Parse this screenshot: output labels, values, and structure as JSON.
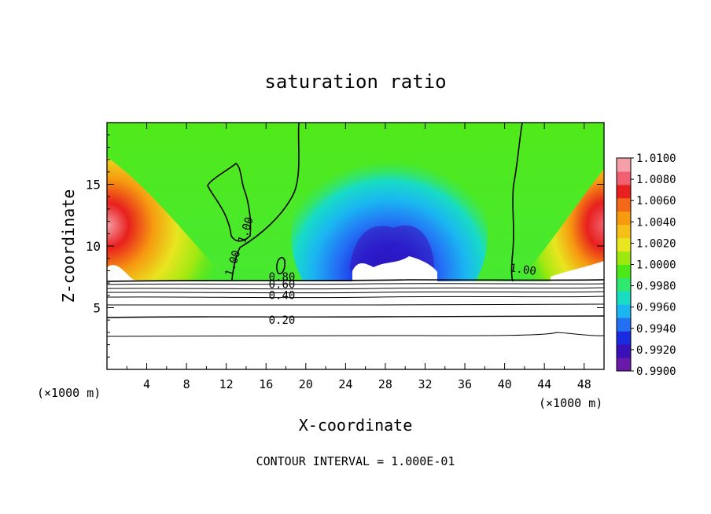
{
  "chart_data": {
    "type": "contour",
    "title": "saturation ratio",
    "xlabel": "X-coordinate",
    "ylabel": "Z-coordinate",
    "x_unit_left": "(×1000 m)",
    "x_unit_right": "(×1000 m)",
    "xlim": [
      0,
      50
    ],
    "ylim": [
      0,
      20
    ],
    "xticks": [
      "4",
      "8",
      "12",
      "16",
      "20",
      "24",
      "28",
      "32",
      "36",
      "40",
      "44",
      "48"
    ],
    "yticks": [
      "5",
      "10",
      "15"
    ],
    "footer": "CONTOUR INTERVAL = 1.000E-01",
    "colorbar": {
      "min": 0.99,
      "max": 1.01,
      "labels": [
        "1.0100",
        "1.0080",
        "1.0060",
        "1.0040",
        "1.0020",
        "1.0000",
        "0.9980",
        "0.9960",
        "0.9940",
        "0.9920",
        "0.9900"
      ],
      "colors": [
        "#6a1aa8",
        "#3a10b8",
        "#1a2ae0",
        "#2470f5",
        "#1ab6f2",
        "#18dcc4",
        "#2ee870",
        "#4ce818",
        "#9ee810",
        "#e8e620",
        "#f6c018",
        "#f69a10",
        "#f46818",
        "#e8201e",
        "#f06070",
        "#f4a0a8"
      ]
    },
    "contour_labels": [
      {
        "text": "1.00",
        "x": 14.3,
        "z": 11.2,
        "angle": -72
      },
      {
        "text": "1.00",
        "x": 13.0,
        "z": 8.5,
        "angle": -72
      },
      {
        "text": "1.00",
        "x": 41.8,
        "z": 7.8,
        "angle": 8
      },
      {
        "text": "0.80",
        "x": 17.6,
        "z": 7.2,
        "angle": 0
      },
      {
        "text": "0.60",
        "x": 17.6,
        "z": 6.6,
        "angle": 0
      },
      {
        "text": "0.40",
        "x": 17.6,
        "z": 5.7,
        "angle": 0
      },
      {
        "text": "0.20",
        "x": 17.6,
        "z": 3.7,
        "angle": 0
      }
    ]
  }
}
